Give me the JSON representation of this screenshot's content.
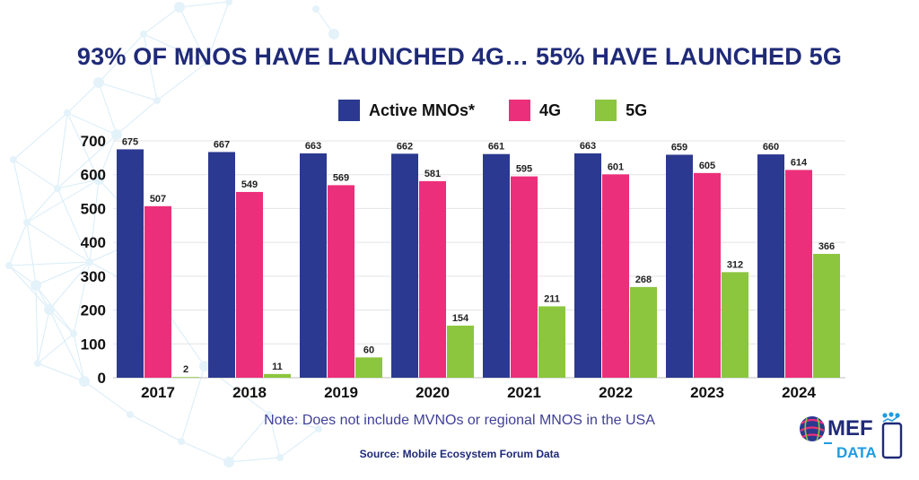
{
  "chart_data": {
    "type": "bar",
    "title": "93% OF MNOS HAVE LAUNCHED 4G… 55% HAVE LAUNCHED 5G",
    "categories": [
      "2017",
      "2018",
      "2019",
      "2020",
      "2021",
      "2022",
      "2023",
      "2024"
    ],
    "series": [
      {
        "name": "Active MNOs*",
        "color": "#2b3990",
        "values": [
          675,
          667,
          663,
          662,
          661,
          663,
          659,
          660
        ]
      },
      {
        "name": "4G",
        "color": "#ec2f7a",
        "values": [
          507,
          549,
          569,
          581,
          595,
          601,
          605,
          614
        ]
      },
      {
        "name": "5G",
        "color": "#8cc63f",
        "values": [
          2,
          11,
          60,
          154,
          211,
          268,
          312,
          366
        ]
      }
    ],
    "ylim": [
      0,
      700
    ],
    "yticks": [
      0,
      100,
      200,
      300,
      400,
      500,
      600,
      700
    ],
    "grid": true,
    "legend": "top-center"
  },
  "note": "Note: Does not include MVNOs or regional MNOS in the USA",
  "source": "Source: Mobile Ecosystem Forum Data",
  "logo": {
    "line1": "MEF",
    "line2": "DATA",
    "accent": "#1f9be0"
  }
}
